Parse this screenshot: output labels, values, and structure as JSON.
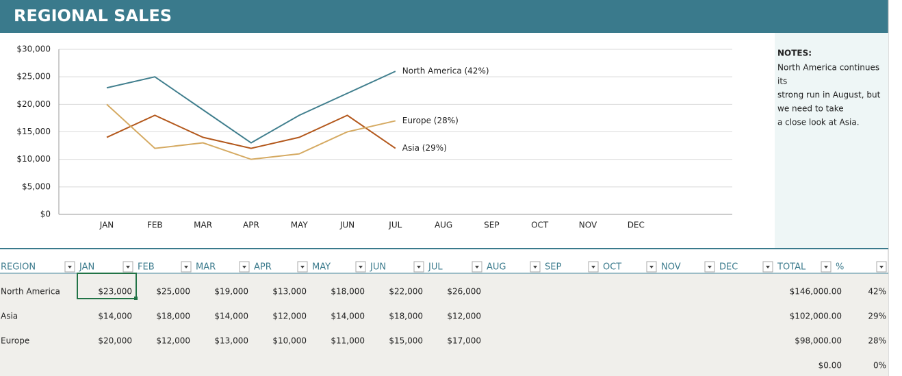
{
  "header": {
    "title": "REGIONAL SALES"
  },
  "chart_data": {
    "type": "line",
    "categories": [
      "JAN",
      "FEB",
      "MAR",
      "APR",
      "MAY",
      "JUN",
      "JUL",
      "AUG",
      "SEP",
      "OCT",
      "NOV",
      "DEC"
    ],
    "series": [
      {
        "name": "North America",
        "label": "North America (42%)",
        "color": "#417f8e",
        "values": [
          23000,
          25000,
          19000,
          13000,
          18000,
          22000,
          26000,
          null,
          null,
          null,
          null,
          null
        ]
      },
      {
        "name": "Asia",
        "label": "Asia (29%)",
        "color": "#b3581c",
        "values": [
          14000,
          18000,
          14000,
          12000,
          14000,
          18000,
          12000,
          null,
          null,
          null,
          null,
          null
        ]
      },
      {
        "name": "Europe",
        "label": "Europe (28%)",
        "color": "#d5aa62",
        "values": [
          20000,
          12000,
          13000,
          10000,
          11000,
          15000,
          17000,
          null,
          null,
          null,
          null,
          null
        ]
      }
    ],
    "ylim": [
      0,
      30000
    ],
    "yticks": [
      {
        "value": 0,
        "label": "$0"
      },
      {
        "value": 5000,
        "label": "$5,000"
      },
      {
        "value": 10000,
        "label": "$10,000"
      },
      {
        "value": 15000,
        "label": "$15,000"
      },
      {
        "value": 20000,
        "label": "$20,000"
      },
      {
        "value": 25000,
        "label": "$25,000"
      },
      {
        "value": 30000,
        "label": "$30,000"
      }
    ],
    "grid": true
  },
  "notes": {
    "title": "NOTES:",
    "lines": [
      "North America continues",
      "its",
      "strong run in August, but",
      "we need to take",
      "a close look at Asia."
    ]
  },
  "table": {
    "columns": [
      "REGION",
      "JAN",
      "FEB",
      "MAR",
      "APR",
      "MAY",
      "JUN",
      "JUL",
      "AUG",
      "SEP",
      "OCT",
      "NOV",
      "DEC",
      "TOTAL",
      "%"
    ],
    "rows": [
      {
        "region": "North America",
        "months": [
          "$23,000",
          "$25,000",
          "$19,000",
          "$13,000",
          "$18,000",
          "$22,000",
          "$26,000"
        ],
        "total": "$146,000.00",
        "pct": "42%"
      },
      {
        "region": "Asia",
        "months": [
          "$14,000",
          "$18,000",
          "$14,000",
          "$12,000",
          "$14,000",
          "$18,000",
          "$12,000"
        ],
        "total": "$102,000.00",
        "pct": "29%"
      },
      {
        "region": "Europe",
        "months": [
          "$20,000",
          "$12,000",
          "$13,000",
          "$10,000",
          "$11,000",
          "$15,000",
          "$17,000"
        ],
        "total": "$98,000.00",
        "pct": "28%"
      },
      {
        "total": "$0.00",
        "pct": "0%"
      }
    ]
  }
}
